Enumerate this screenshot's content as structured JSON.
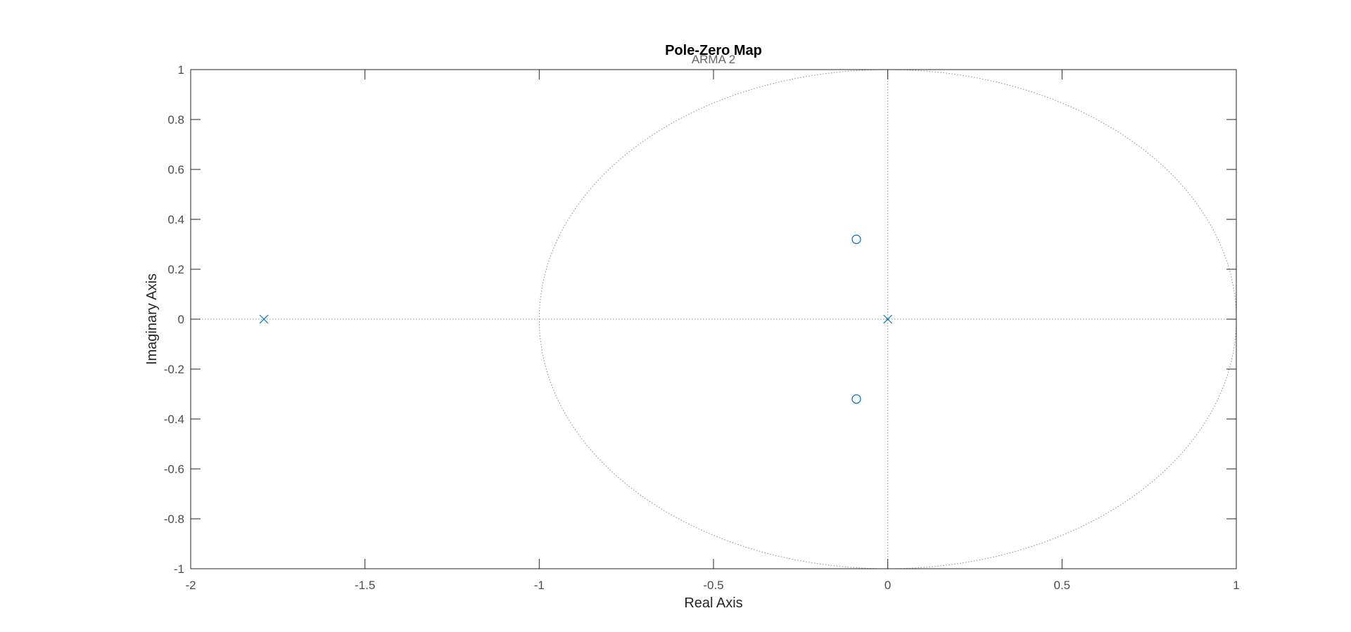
{
  "chart_data": {
    "type": "scatter",
    "title": "Pole-Zero Map",
    "subtitle": "ARMA 2",
    "xlabel": "Real Axis",
    "ylabel": "Imaginary Axis",
    "xlim": [
      -2,
      1
    ],
    "ylim": [
      -1,
      1
    ],
    "xticks": [
      -2,
      -1.5,
      -1,
      -0.5,
      0,
      0.5,
      1
    ],
    "xtick_labels": [
      "-2",
      "-1.5",
      "-1",
      "-0.5",
      "0",
      "0.5",
      "1"
    ],
    "yticks": [
      1,
      0.8,
      0.6,
      0.4,
      0.2,
      0,
      -0.2,
      -0.4,
      -0.6,
      -0.8,
      -1
    ],
    "ytick_labels": [
      "1",
      "0.8",
      "0.6",
      "0.4",
      "0.2",
      "0",
      "-0.2",
      "-0.4",
      "-0.6",
      "-0.8",
      "-1"
    ],
    "grid": false,
    "unit_circle": true,
    "poles": [
      {
        "re": -1.79,
        "im": 0
      },
      {
        "re": 0,
        "im": 0
      }
    ],
    "zeros": [
      {
        "re": -0.09,
        "im": 0.32
      },
      {
        "re": -0.09,
        "im": -0.32
      }
    ],
    "marker_color": "#0072bd",
    "reference_line_color": "#8c8c8c"
  }
}
